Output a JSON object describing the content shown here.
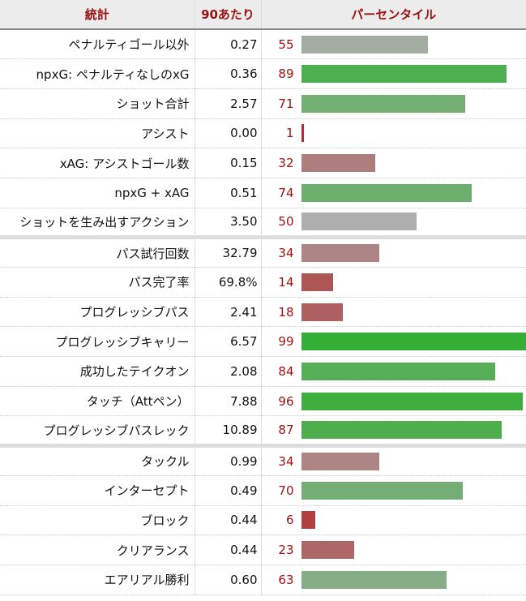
{
  "header": {
    "stat": "統計",
    "per90": "90あたり",
    "percentile": "パーセンタイル"
  },
  "chart_data": {
    "type": "bar",
    "xlim": [
      0,
      100
    ],
    "rows": [
      {
        "stat": "ペナルティゴール以外",
        "per90": "0.27",
        "percentile": 55,
        "color": "#a3ada1",
        "group": 1
      },
      {
        "stat": "npxG: ペナルティなしのxG",
        "per90": "0.36",
        "percentile": 89,
        "color": "#4daf50",
        "group": 1
      },
      {
        "stat": "ショット合計",
        "per90": "2.57",
        "percentile": 71,
        "color": "#73ae73",
        "group": 1
      },
      {
        "stat": "アシスト",
        "per90": "0.00",
        "percentile": 1,
        "color": "#b03030",
        "group": 1
      },
      {
        "stat": "xAG: アシストゴール数",
        "per90": "0.15",
        "percentile": 32,
        "color": "#ae7e7e",
        "group": 1
      },
      {
        "stat": "npxG + xAG",
        "per90": "0.51",
        "percentile": 74,
        "color": "#6cae6c",
        "group": 1
      },
      {
        "stat": "ショットを生み出すアクション",
        "per90": "3.50",
        "percentile": 50,
        "color": "#aeaeae",
        "group": 1
      },
      {
        "stat": "パス試行回数",
        "per90": "32.79",
        "percentile": 34,
        "color": "#ae8585",
        "group": 2
      },
      {
        "stat": "パス完了率",
        "per90": "69.8%",
        "percentile": 14,
        "color": "#ae5555",
        "group": 2
      },
      {
        "stat": "プログレッシブパス",
        "per90": "2.41",
        "percentile": 18,
        "color": "#ae5f5f",
        "group": 2
      },
      {
        "stat": "プログレッシブキャリー",
        "per90": "6.57",
        "percentile": 99,
        "color": "#35ae35",
        "group": 2
      },
      {
        "stat": "成功したテイクオン",
        "per90": "2.08",
        "percentile": 84,
        "color": "#56ae56",
        "group": 2
      },
      {
        "stat": "タッチ（Attペン）",
        "per90": "7.88",
        "percentile": 96,
        "color": "#3eae3e",
        "group": 2
      },
      {
        "stat": "プログレッシブパスレック",
        "per90": "10.89",
        "percentile": 87,
        "color": "#4eae4e",
        "group": 2
      },
      {
        "stat": "タックル",
        "per90": "0.99",
        "percentile": 34,
        "color": "#ae8585",
        "group": 3
      },
      {
        "stat": "インターセプト",
        "per90": "0.49",
        "percentile": 70,
        "color": "#75ae75",
        "group": 3
      },
      {
        "stat": "ブロック",
        "per90": "0.44",
        "percentile": 6,
        "color": "#b04040",
        "group": 3
      },
      {
        "stat": "クリアランス",
        "per90": "0.44",
        "percentile": 23,
        "color": "#ae6666",
        "group": 3
      },
      {
        "stat": "エアリアル勝利",
        "per90": "0.60",
        "percentile": 63,
        "color": "#86ae86",
        "group": 3
      }
    ]
  }
}
